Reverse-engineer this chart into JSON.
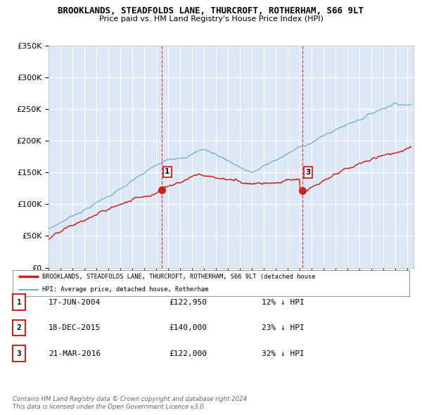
{
  "title_line1": "BROOKLANDS, STEADFOLDS LANE, THURCROFT, ROTHERHAM, S66 9LT",
  "title_line2": "Price paid vs. HM Land Registry's House Price Index (HPI)",
  "ylim": [
    0,
    350000
  ],
  "yticks": [
    0,
    50000,
    100000,
    150000,
    200000,
    250000,
    300000,
    350000
  ],
  "ytick_labels": [
    "£0",
    "£50K",
    "£100K",
    "£150K",
    "£200K",
    "£250K",
    "£300K",
    "£350K"
  ],
  "xlim_start": 1995.0,
  "xlim_end": 2025.5,
  "background_color": "#ffffff",
  "plot_bg_color": "#dce8f5",
  "grid_color": "#ffffff",
  "hpi_color": "#7bafd4",
  "price_color": "#cc2222",
  "transaction_1": {
    "date_num": 2004.46,
    "price": 122950,
    "label": "1"
  },
  "transaction_2": {
    "date_num": 2015.96,
    "price": 140000,
    "label": "2"
  },
  "transaction_3": {
    "date_num": 2016.22,
    "price": 122000,
    "label": "3"
  },
  "legend_label_price": "BROOKLANDS, STEADFOLDS LANE, THURCROFT, ROTHERHAM, S66 9LT (detached house",
  "legend_label_hpi": "HPI: Average price, detached house, Rotherham",
  "table_rows": [
    {
      "num": "1",
      "date": "17-JUN-2004",
      "price": "£122,950",
      "hpi": "12% ↓ HPI"
    },
    {
      "num": "2",
      "date": "18-DEC-2015",
      "price": "£140,000",
      "hpi": "23% ↓ HPI"
    },
    {
      "num": "3",
      "date": "21-MAR-2016",
      "price": "£122,000",
      "hpi": "32% ↓ HPI"
    }
  ],
  "footnote1": "Contains HM Land Registry data © Crown copyright and database right 2024.",
  "footnote2": "This data is licensed under the Open Government Licence v3.0.",
  "vline_dates": [
    2004.46,
    2016.22
  ]
}
